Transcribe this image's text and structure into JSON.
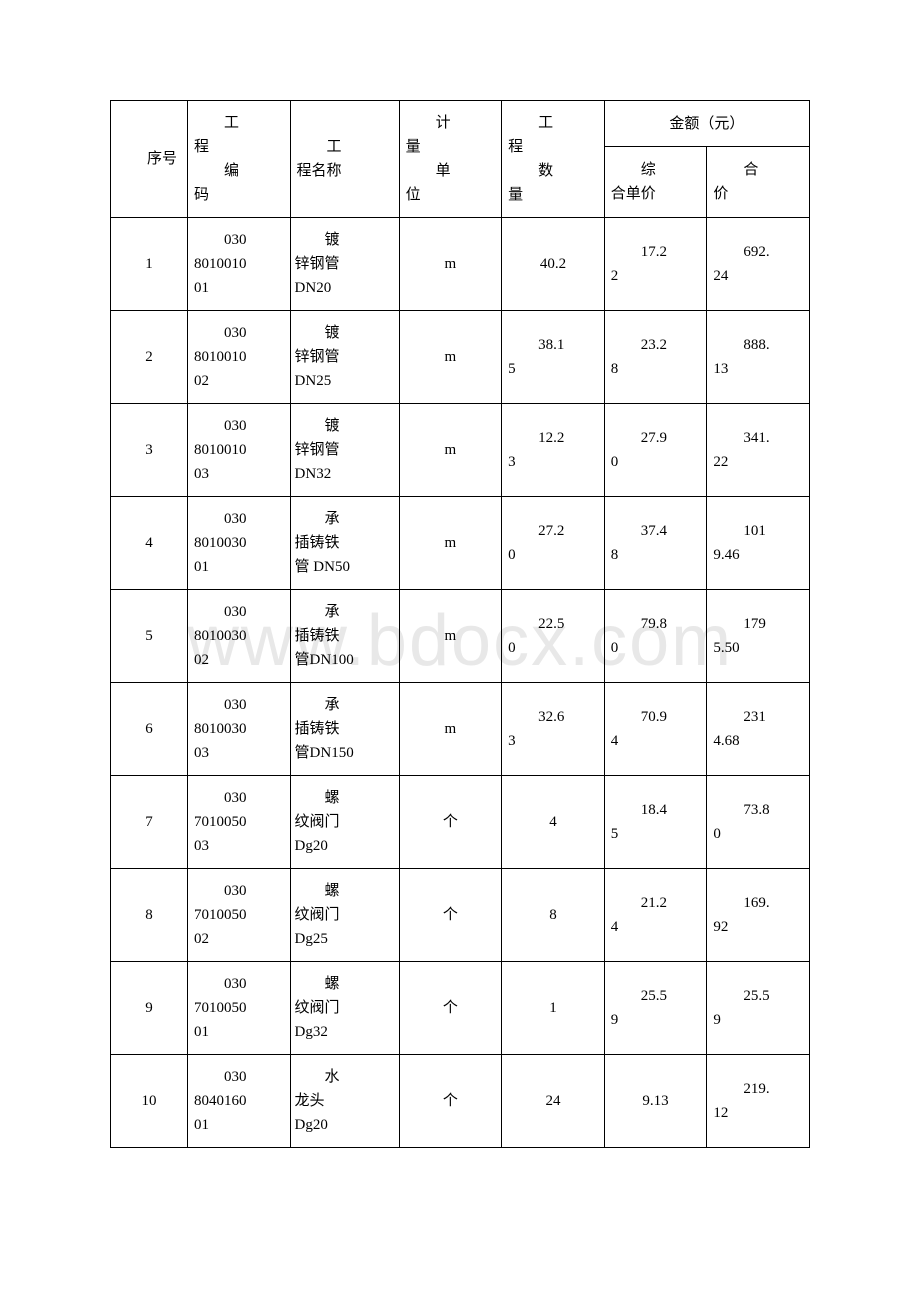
{
  "table": {
    "headers": {
      "seq": "序号",
      "code": "工程编码",
      "name": "工程名称",
      "unit": "计量单位",
      "qty": "工程数量",
      "amount_header": "金额（元）",
      "unit_price": "综合单价",
      "total_price": "合价"
    },
    "rows": [
      {
        "seq": "1",
        "code_a": "030",
        "code_b": "8010010",
        "code_c": "01",
        "name_a": "镀",
        "name_b": "锌钢管",
        "name_c": "DN20",
        "unit": "m",
        "qty_a": "",
        "qty_b": "40.2",
        "price_a": "17.2",
        "price_b": "2",
        "total_a": "692.",
        "total_b": "24"
      },
      {
        "seq": "2",
        "code_a": "030",
        "code_b": "8010010",
        "code_c": "02",
        "name_a": "镀",
        "name_b": "锌钢管",
        "name_c": "DN25",
        "unit": "m",
        "qty_a": "38.1",
        "qty_b": "5",
        "price_a": "23.2",
        "price_b": "8",
        "total_a": "888.",
        "total_b": "13"
      },
      {
        "seq": "3",
        "code_a": "030",
        "code_b": "8010010",
        "code_c": "03",
        "name_a": "镀",
        "name_b": "锌钢管",
        "name_c": "DN32",
        "unit": "m",
        "qty_a": "12.2",
        "qty_b": "3",
        "price_a": "27.9",
        "price_b": "0",
        "total_a": "341.",
        "total_b": "22"
      },
      {
        "seq": "4",
        "code_a": "030",
        "code_b": "8010030",
        "code_c": "01",
        "name_a": "承",
        "name_b": "插铸铁",
        "name_c": "管 DN50",
        "unit": "m",
        "qty_a": "27.2",
        "qty_b": "0",
        "price_a": "37.4",
        "price_b": "8",
        "total_a": "101",
        "total_b": "9.46"
      },
      {
        "seq": "5",
        "code_a": "030",
        "code_b": "8010030",
        "code_c": "02",
        "name_a": "承",
        "name_b": "插铸铁",
        "name_c": "管DN100",
        "unit": "m",
        "qty_a": "22.5",
        "qty_b": "0",
        "price_a": "79.8",
        "price_b": "0",
        "total_a": "179",
        "total_b": "5.50"
      },
      {
        "seq": "6",
        "code_a": "030",
        "code_b": "8010030",
        "code_c": "03",
        "name_a": "承",
        "name_b": "插铸铁",
        "name_c": "管DN150",
        "unit": "m",
        "qty_a": "32.6",
        "qty_b": "3",
        "price_a": "70.9",
        "price_b": "4",
        "total_a": "231",
        "total_b": "4.68"
      },
      {
        "seq": "7",
        "code_a": "030",
        "code_b": "7010050",
        "code_c": "03",
        "name_a": "螺",
        "name_b": "纹阀门",
        "name_c": "Dg20",
        "unit": "个",
        "qty_a": "",
        "qty_b": "4",
        "price_a": "18.4",
        "price_b": "5",
        "total_a": "73.8",
        "total_b": "0"
      },
      {
        "seq": "8",
        "code_a": "030",
        "code_b": "7010050",
        "code_c": "02",
        "name_a": "螺",
        "name_b": "纹阀门",
        "name_c": "Dg25",
        "unit": "个",
        "qty_a": "",
        "qty_b": "8",
        "price_a": "21.2",
        "price_b": "4",
        "total_a": "169.",
        "total_b": "92"
      },
      {
        "seq": "9",
        "code_a": "030",
        "code_b": "7010050",
        "code_c": "01",
        "name_a": "螺",
        "name_b": "纹阀门",
        "name_c": "Dg32",
        "unit": "个",
        "qty_a": "",
        "qty_b": "1",
        "price_a": "25.5",
        "price_b": "9",
        "total_a": "25.5",
        "total_b": "9"
      },
      {
        "seq": "10",
        "code_a": "030",
        "code_b": "8040160",
        "code_c": "01",
        "name_a": "水",
        "name_b": "龙头",
        "name_c": "Dg20",
        "unit": "个",
        "qty_a": "",
        "qty_b": "24",
        "price_a": "",
        "price_b": "9.13",
        "total_a": "219.",
        "total_b": "12"
      }
    ],
    "colors": {
      "border": "#000000",
      "text": "#000000",
      "background": "#ffffff",
      "watermark": "#e8e8e8"
    },
    "font_size": 15
  }
}
